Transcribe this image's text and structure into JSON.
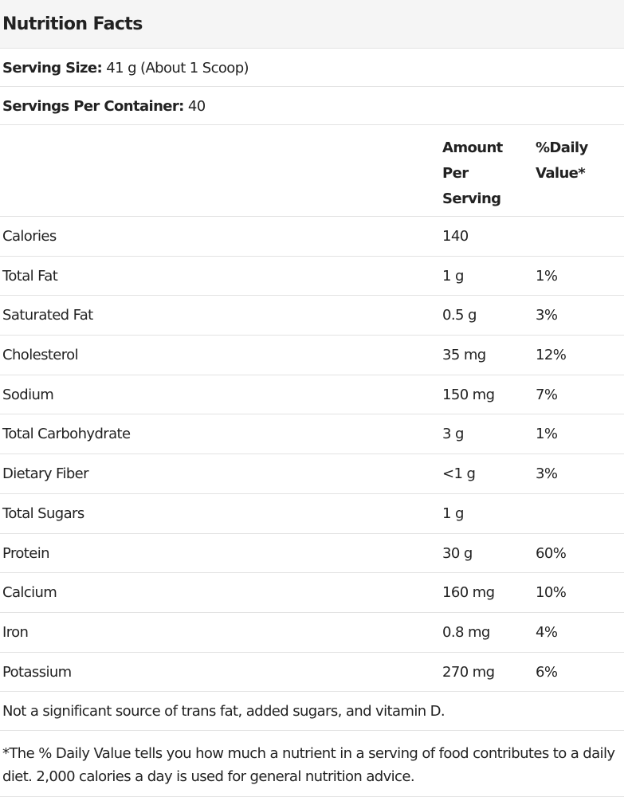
{
  "title": "Nutrition Facts",
  "serving_size": {
    "label": "Serving Size:",
    "value": "41 g (About 1 Scoop)"
  },
  "servings_per_container": {
    "label": "Servings Per Container:",
    "value": "40"
  },
  "columns": {
    "amount": "Amount\nPer\nServing",
    "daily_value": "%Daily\nValue*"
  },
  "nutrients": [
    {
      "name": "Calories",
      "amount": "140",
      "dv": ""
    },
    {
      "name": "Total Fat",
      "amount": "1 g",
      "dv": "1%"
    },
    {
      "name": "Saturated Fat",
      "amount": "0.5 g",
      "dv": "3%"
    },
    {
      "name": "Cholesterol",
      "amount": "35 mg",
      "dv": "12%"
    },
    {
      "name": "Sodium",
      "amount": "150 mg",
      "dv": "7%"
    },
    {
      "name": "Total Carbohydrate",
      "amount": "3 g",
      "dv": "1%"
    },
    {
      "name": "Dietary Fiber",
      "amount": "<1 g",
      "dv": "3%"
    },
    {
      "name": "Total Sugars",
      "amount": "1 g",
      "dv": ""
    },
    {
      "name": "Protein",
      "amount": "30 g",
      "dv": "60%"
    },
    {
      "name": "Calcium",
      "amount": "160 mg",
      "dv": "10%"
    },
    {
      "name": "Iron",
      "amount": "0.8 mg",
      "dv": "4%"
    },
    {
      "name": "Potassium",
      "amount": "270 mg",
      "dv": "6%"
    }
  ],
  "note": "Not a significant source of trans fat, added sugars, and vitamin D.",
  "footnote": "*The % Daily Value tells you how much a nutrient in a serving of food contributes to a daily diet. 2,000 calories a day is used for general nutrition advice."
}
